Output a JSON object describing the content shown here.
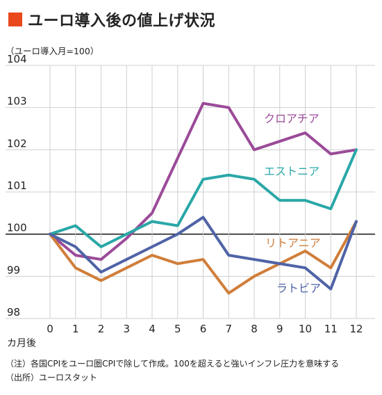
{
  "title": "ユーロ導入後の値上げ状況",
  "unit_note": "（ユーロ導入月=100）",
  "notes": {
    "note": "（注）各国CPIをユーロ圏CPIで除して作成。100を超えると強いインフレ圧力を意味する",
    "source": "（出所）ユーロスタット"
  },
  "colors": {
    "title_square": "#e8481c",
    "croatia": "#9b4a98",
    "estonia": "#2aa7a7",
    "lithuania": "#d07e3a",
    "latvia": "#4f63a6"
  },
  "chart_data": {
    "type": "line",
    "title": "ユーロ導入後の値上げ状況",
    "xlabel": "カ月後",
    "ylabel": "（ユーロ導入月=100）",
    "x": [
      0,
      1,
      2,
      3,
      4,
      5,
      6,
      7,
      8,
      9,
      10,
      11,
      12
    ],
    "xlim": [
      0,
      12
    ],
    "ylim": [
      98,
      104
    ],
    "yticks": [
      98,
      99,
      100,
      101,
      102,
      103,
      104
    ],
    "grid": true,
    "series": [
      {
        "name": "クロアチア",
        "color": "#9b4a98",
        "values": [
          100,
          99.5,
          99.4,
          99.9,
          100.5,
          101.8,
          103.1,
          103.0,
          102.0,
          102.2,
          102.4,
          101.9,
          102.0
        ]
      },
      {
        "name": "エストニア",
        "color": "#2aa7a7",
        "values": [
          100,
          100.2,
          99.7,
          100.0,
          100.3,
          100.2,
          101.3,
          101.4,
          101.3,
          100.8,
          100.8,
          100.6,
          102.0
        ]
      },
      {
        "name": "リトアニア",
        "color": "#d07e3a",
        "values": [
          100,
          99.2,
          98.9,
          99.2,
          99.5,
          99.3,
          99.4,
          98.6,
          99.0,
          99.3,
          99.6,
          99.2,
          100.3
        ]
      },
      {
        "name": "ラトビア",
        "color": "#4f63a6",
        "values": [
          100,
          99.7,
          99.1,
          99.4,
          99.7,
          100.0,
          100.4,
          99.5,
          99.4,
          99.3,
          99.2,
          98.7,
          100.3
        ]
      }
    ]
  }
}
